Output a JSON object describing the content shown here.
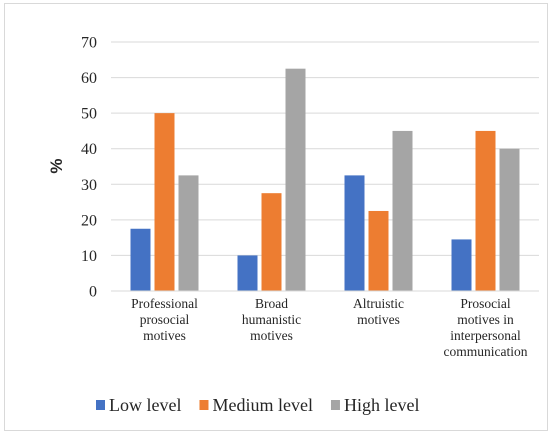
{
  "chart_data": {
    "type": "bar",
    "title": "",
    "xlabel": "",
    "ylabel": "%",
    "ylim": [
      0,
      70
    ],
    "yticks": [
      0,
      10,
      20,
      30,
      40,
      50,
      60,
      70
    ],
    "grid": "horizontal",
    "legend_position": "bottom",
    "categories": [
      [
        "Professional",
        "prosocial",
        "motives"
      ],
      [
        "Broad",
        "humanistic",
        "motives"
      ],
      [
        "Altruistic",
        "motives"
      ],
      [
        "Prosocial",
        "motives in",
        "interpersonal",
        "communication"
      ]
    ],
    "series": [
      {
        "name": "Low level",
        "color": "#4472c4",
        "values": [
          17.5,
          10,
          32.5,
          14.5
        ]
      },
      {
        "name": "Medium level",
        "color": "#ed7d31",
        "values": [
          50,
          27.5,
          22.5,
          45
        ]
      },
      {
        "name": "High level",
        "color": "#a5a5a5",
        "values": [
          32.5,
          62.5,
          45,
          40
        ]
      }
    ]
  }
}
